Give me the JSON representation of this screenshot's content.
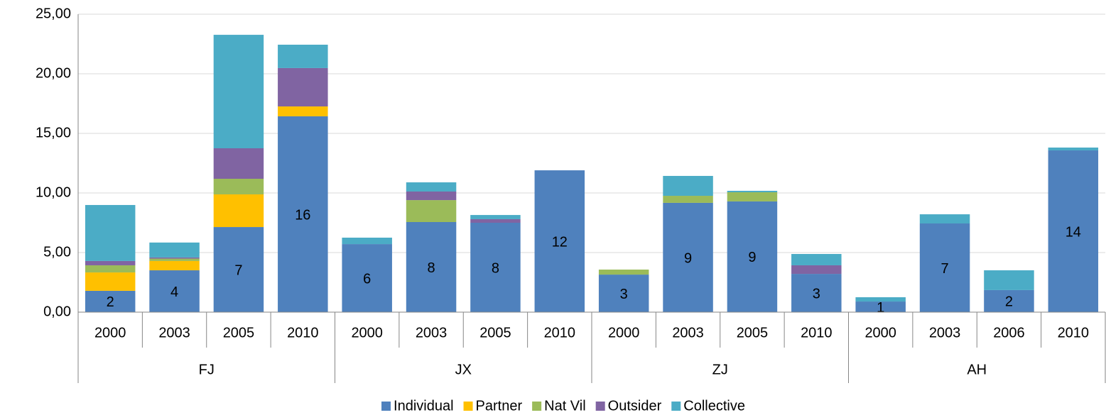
{
  "chart_data": {
    "type": "stacked-bar",
    "categories": [
      "2000",
      "2003",
      "2005",
      "2010",
      "2000",
      "2003",
      "2005",
      "2010",
      "2000",
      "2003",
      "2005",
      "2010",
      "2000",
      "2003",
      "2006",
      "2010"
    ],
    "groups": [
      "FJ",
      "JX",
      "ZJ",
      "AH"
    ],
    "series": [
      {
        "name": "Individual",
        "color": "#4f81bd",
        "values": [
          1.79,
          3.51,
          7.14,
          16.43,
          5.71,
          7.56,
          7.5,
          11.9,
          3.15,
          9.17,
          9.29,
          3.21,
          0.89,
          7.44,
          1.85,
          13.57
        ],
        "value_labels": [
          "2",
          "4",
          "7",
          "16",
          "6",
          "8",
          "8",
          "12",
          "3",
          "9",
          "9",
          "3",
          "1",
          "7",
          "2",
          "14"
        ]
      },
      {
        "name": "Partner",
        "color": "#ffc000",
        "values": [
          1.54,
          0.78,
          2.74,
          0.83,
          0,
          0,
          0,
          0,
          0,
          0,
          0,
          0,
          0,
          0,
          0,
          0
        ]
      },
      {
        "name": "Nat Vil",
        "color": "#9bbb59",
        "values": [
          0.6,
          0.2,
          1.31,
          0,
          0,
          1.84,
          0,
          0,
          0.42,
          0.59,
          0.77,
          0,
          0,
          0,
          0,
          0
        ]
      },
      {
        "name": "Outsider",
        "color": "#8064a2",
        "values": [
          0.36,
          0.1,
          2.56,
          3.22,
          0,
          0.72,
          0.3,
          0,
          0,
          0,
          0,
          0.72,
          0,
          0,
          0,
          0
        ]
      },
      {
        "name": "Collective",
        "color": "#4bacc6",
        "values": [
          4.7,
          1.25,
          9.52,
          1.96,
          0.54,
          0.77,
          0.35,
          0,
          0,
          1.67,
          0.12,
          0.95,
          0.36,
          0.77,
          1.66,
          0.24
        ]
      }
    ],
    "ylim": [
      0,
      25
    ],
    "yticks": [
      {
        "value": 0,
        "label": "0,00"
      },
      {
        "value": 5,
        "label": "5,00"
      },
      {
        "value": 10,
        "label": "10,00"
      },
      {
        "value": 15,
        "label": "15,00"
      },
      {
        "value": 20,
        "label": "20,00"
      },
      {
        "value": 25,
        "label": "25,00"
      }
    ],
    "grid": true,
    "legend": "bottom"
  }
}
